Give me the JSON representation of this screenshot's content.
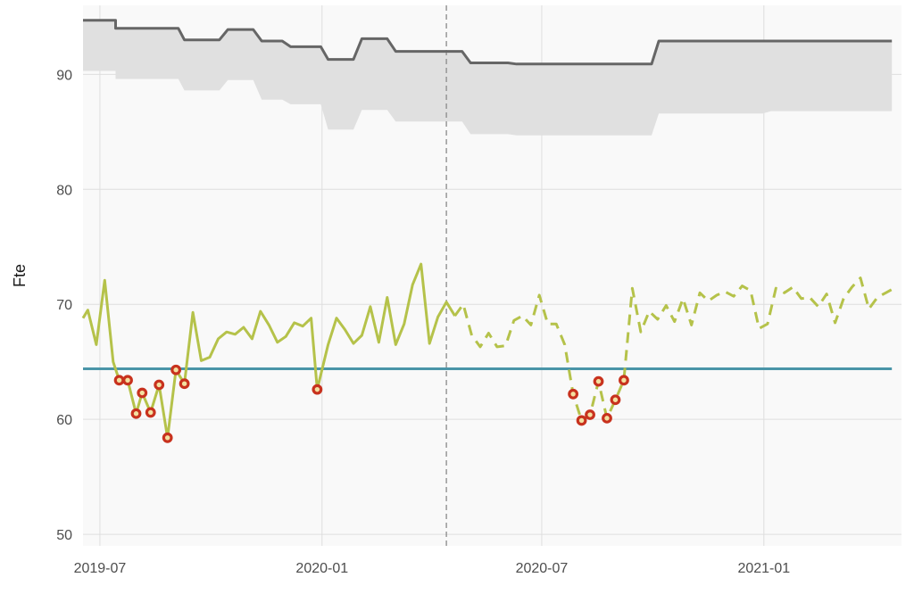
{
  "chart_data": {
    "type": "line",
    "title": "",
    "xlabel": "",
    "ylabel": "Fte",
    "ylim": [
      49,
      96
    ],
    "xlim": [
      "2019-06-17",
      "2021-04-25"
    ],
    "grid": true,
    "yticks": [
      50,
      60,
      70,
      80,
      90
    ],
    "xticks": [
      {
        "date": "2019-07-01",
        "label": "2019-07"
      },
      {
        "date": "2020-01-01",
        "label": "2020-01"
      },
      {
        "date": "2020-07-01",
        "label": "2020-07"
      },
      {
        "date": "2021-01-01",
        "label": "2021-01"
      }
    ],
    "forecast_start": "2020-04-13",
    "threshold": 64.4,
    "colors": {
      "panel": "#f9f9f9",
      "grid": "#dedede",
      "band": "#e0e0e0",
      "upper": "#666666",
      "actual": "#b5c24a",
      "threshold": "#4a95a8",
      "marker_ring": "#c8321e",
      "marker_fill": "#f3e0a0",
      "divider": "#8a8a8a"
    },
    "upper_steps": [
      {
        "x": "2019-06-17",
        "y": 94.7
      },
      {
        "x": "2019-07-14",
        "y": 94.7
      },
      {
        "x": "2019-07-14",
        "y": 94.0
      },
      {
        "x": "2019-08-29",
        "y": 94.0
      },
      {
        "x": "2019-08-29",
        "y": 94.0
      },
      {
        "x": "2019-09-04",
        "y": 94.0
      },
      {
        "x": "2019-09-09",
        "y": 93.0
      },
      {
        "x": "2019-10-08",
        "y": 93.0
      },
      {
        "x": "2019-10-15",
        "y": 93.9
      },
      {
        "x": "2019-11-05",
        "y": 93.9
      },
      {
        "x": "2019-11-12",
        "y": 92.9
      },
      {
        "x": "2019-11-29",
        "y": 92.9
      },
      {
        "x": "2019-12-06",
        "y": 92.4
      },
      {
        "x": "2019-12-31",
        "y": 92.4
      },
      {
        "x": "2020-01-06",
        "y": 91.3
      },
      {
        "x": "2020-01-27",
        "y": 91.3
      },
      {
        "x": "2020-02-03",
        "y": 93.1
      },
      {
        "x": "2020-02-24",
        "y": 93.1
      },
      {
        "x": "2020-03-02",
        "y": 92.0
      },
      {
        "x": "2020-04-26",
        "y": 92.0
      },
      {
        "x": "2020-05-03",
        "y": 91.0
      },
      {
        "x": "2020-06-03",
        "y": 91.0
      },
      {
        "x": "2020-06-10",
        "y": 90.9
      },
      {
        "x": "2020-09-30",
        "y": 90.9
      },
      {
        "x": "2020-10-06",
        "y": 92.9
      },
      {
        "x": "2021-04-17",
        "y": 92.9
      }
    ],
    "band_lower": [
      {
        "x": "2019-06-17",
        "y": 90.3
      },
      {
        "x": "2019-07-14",
        "y": 90.3
      },
      {
        "x": "2019-07-14",
        "y": 89.6
      },
      {
        "x": "2019-08-29",
        "y": 89.6
      },
      {
        "x": "2019-09-04",
        "y": 89.6
      },
      {
        "x": "2019-09-09",
        "y": 88.6
      },
      {
        "x": "2019-10-08",
        "y": 88.6
      },
      {
        "x": "2019-10-15",
        "y": 89.5
      },
      {
        "x": "2019-11-05",
        "y": 89.5
      },
      {
        "x": "2019-11-12",
        "y": 87.8
      },
      {
        "x": "2019-11-29",
        "y": 87.8
      },
      {
        "x": "2019-12-06",
        "y": 87.4
      },
      {
        "x": "2019-12-31",
        "y": 87.4
      },
      {
        "x": "2020-01-06",
        "y": 85.2
      },
      {
        "x": "2020-01-27",
        "y": 85.2
      },
      {
        "x": "2020-02-03",
        "y": 86.9
      },
      {
        "x": "2020-02-24",
        "y": 86.9
      },
      {
        "x": "2020-03-02",
        "y": 85.9
      },
      {
        "x": "2020-04-26",
        "y": 85.9
      },
      {
        "x": "2020-05-03",
        "y": 84.8
      },
      {
        "x": "2020-06-03",
        "y": 84.8
      },
      {
        "x": "2020-06-10",
        "y": 84.7
      },
      {
        "x": "2020-09-30",
        "y": 84.7
      },
      {
        "x": "2020-10-06",
        "y": 86.6
      },
      {
        "x": "2020-12-31",
        "y": 86.6
      },
      {
        "x": "2021-01-07",
        "y": 86.8
      },
      {
        "x": "2021-04-17",
        "y": 86.8
      }
    ],
    "series": [
      {
        "style": "solid",
        "points": [
          {
            "x": "2019-06-17",
            "y": 68.8
          },
          {
            "x": "2019-06-21",
            "y": 69.5
          },
          {
            "x": "2019-06-28",
            "y": 66.5
          },
          {
            "x": "2019-07-05",
            "y": 72.1
          },
          {
            "x": "2019-07-12",
            "y": 65.0
          },
          {
            "x": "2019-07-17",
            "y": 63.4
          },
          {
            "x": "2019-07-24",
            "y": 63.4
          },
          {
            "x": "2019-07-31",
            "y": 60.5
          },
          {
            "x": "2019-08-05",
            "y": 62.3
          },
          {
            "x": "2019-08-12",
            "y": 60.6
          },
          {
            "x": "2019-08-19",
            "y": 63.0
          },
          {
            "x": "2019-08-26",
            "y": 58.4
          },
          {
            "x": "2019-09-02",
            "y": 64.3
          },
          {
            "x": "2019-09-09",
            "y": 63.1
          },
          {
            "x": "2019-09-16",
            "y": 69.3
          },
          {
            "x": "2019-09-23",
            "y": 65.1
          },
          {
            "x": "2019-09-30",
            "y": 65.4
          },
          {
            "x": "2019-10-07",
            "y": 67.0
          },
          {
            "x": "2019-10-14",
            "y": 67.6
          },
          {
            "x": "2019-10-21",
            "y": 67.4
          },
          {
            "x": "2019-10-28",
            "y": 68.0
          },
          {
            "x": "2019-11-04",
            "y": 67.0
          },
          {
            "x": "2019-11-11",
            "y": 69.4
          },
          {
            "x": "2019-11-18",
            "y": 68.2
          },
          {
            "x": "2019-11-25",
            "y": 66.7
          },
          {
            "x": "2019-12-02",
            "y": 67.2
          },
          {
            "x": "2019-12-09",
            "y": 68.4
          },
          {
            "x": "2019-12-16",
            "y": 68.1
          },
          {
            "x": "2019-12-23",
            "y": 68.8
          },
          {
            "x": "2019-12-28",
            "y": 62.6
          },
          {
            "x": "2020-01-06",
            "y": 66.5
          },
          {
            "x": "2020-01-13",
            "y": 68.8
          },
          {
            "x": "2020-01-20",
            "y": 67.8
          },
          {
            "x": "2020-01-27",
            "y": 66.6
          },
          {
            "x": "2020-02-03",
            "y": 67.3
          },
          {
            "x": "2020-02-10",
            "y": 69.8
          },
          {
            "x": "2020-02-17",
            "y": 66.7
          },
          {
            "x": "2020-02-24",
            "y": 70.6
          },
          {
            "x": "2020-03-02",
            "y": 66.5
          },
          {
            "x": "2020-03-09",
            "y": 68.3
          },
          {
            "x": "2020-03-16",
            "y": 71.7
          },
          {
            "x": "2020-03-23",
            "y": 73.5
          },
          {
            "x": "2020-03-30",
            "y": 66.6
          },
          {
            "x": "2020-04-06",
            "y": 68.9
          },
          {
            "x": "2020-04-13",
            "y": 70.2
          },
          {
            "x": "2020-04-20",
            "y": 69.0
          }
        ]
      },
      {
        "style": "dashed",
        "points": [
          {
            "x": "2020-04-27",
            "y": 70.0
          },
          {
            "x": "2020-05-04",
            "y": 67.3
          },
          {
            "x": "2020-05-11",
            "y": 66.3
          },
          {
            "x": "2020-05-18",
            "y": 67.5
          },
          {
            "x": "2020-05-25",
            "y": 66.3
          },
          {
            "x": "2020-06-01",
            "y": 66.4
          },
          {
            "x": "2020-06-08",
            "y": 68.6
          },
          {
            "x": "2020-06-15",
            "y": 69.0
          },
          {
            "x": "2020-06-22",
            "y": 68.2
          },
          {
            "x": "2020-06-29",
            "y": 70.8
          },
          {
            "x": "2020-07-06",
            "y": 68.3
          },
          {
            "x": "2020-07-13",
            "y": 68.3
          },
          {
            "x": "2020-07-20",
            "y": 66.5
          },
          {
            "x": "2020-07-27",
            "y": 62.2
          },
          {
            "x": "2020-08-03",
            "y": 59.9
          },
          {
            "x": "2020-08-10",
            "y": 60.4
          },
          {
            "x": "2020-08-17",
            "y": 63.3
          },
          {
            "x": "2020-08-24",
            "y": 60.1
          },
          {
            "x": "2020-08-31",
            "y": 61.7
          },
          {
            "x": "2020-09-07",
            "y": 63.4
          },
          {
            "x": "2020-09-14",
            "y": 71.4
          },
          {
            "x": "2020-09-21",
            "y": 67.6
          },
          {
            "x": "2020-09-28",
            "y": 69.4
          },
          {
            "x": "2020-10-05",
            "y": 68.7
          },
          {
            "x": "2020-10-12",
            "y": 69.9
          },
          {
            "x": "2020-10-19",
            "y": 68.5
          },
          {
            "x": "2020-10-26",
            "y": 70.5
          },
          {
            "x": "2020-11-02",
            "y": 68.2
          },
          {
            "x": "2020-11-09",
            "y": 71.0
          },
          {
            "x": "2020-11-16",
            "y": 70.3
          },
          {
            "x": "2020-11-23",
            "y": 70.8
          },
          {
            "x": "2020-11-30",
            "y": 71.1
          },
          {
            "x": "2020-12-07",
            "y": 70.7
          },
          {
            "x": "2020-12-14",
            "y": 71.6
          },
          {
            "x": "2020-12-21",
            "y": 71.2
          },
          {
            "x": "2020-12-28",
            "y": 67.9
          },
          {
            "x": "2021-01-04",
            "y": 68.3
          },
          {
            "x": "2021-01-11",
            "y": 71.4
          },
          {
            "x": "2021-01-18",
            "y": 71.0
          },
          {
            "x": "2021-01-25",
            "y": 71.5
          },
          {
            "x": "2021-02-01",
            "y": 70.5
          },
          {
            "x": "2021-02-08",
            "y": 70.6
          },
          {
            "x": "2021-02-15",
            "y": 69.8
          },
          {
            "x": "2021-02-22",
            "y": 70.9
          },
          {
            "x": "2021-03-01",
            "y": 68.4
          },
          {
            "x": "2021-03-08",
            "y": 70.5
          },
          {
            "x": "2021-03-15",
            "y": 71.5
          },
          {
            "x": "2021-03-22",
            "y": 72.3
          },
          {
            "x": "2021-03-29",
            "y": 69.6
          },
          {
            "x": "2021-04-05",
            "y": 70.6
          },
          {
            "x": "2021-04-12",
            "y": 71.0
          },
          {
            "x": "2021-04-17",
            "y": 71.3
          }
        ]
      }
    ],
    "flagged_points": [
      {
        "x": "2019-07-17",
        "y": 63.4
      },
      {
        "x": "2019-07-24",
        "y": 63.4
      },
      {
        "x": "2019-07-31",
        "y": 60.5
      },
      {
        "x": "2019-08-05",
        "y": 62.3
      },
      {
        "x": "2019-08-12",
        "y": 60.6
      },
      {
        "x": "2019-08-19",
        "y": 63.0
      },
      {
        "x": "2019-08-26",
        "y": 58.4
      },
      {
        "x": "2019-09-02",
        "y": 64.3
      },
      {
        "x": "2019-09-09",
        "y": 63.1
      },
      {
        "x": "2019-12-28",
        "y": 62.6
      },
      {
        "x": "2020-07-27",
        "y": 62.2
      },
      {
        "x": "2020-08-03",
        "y": 59.9
      },
      {
        "x": "2020-08-10",
        "y": 60.4
      },
      {
        "x": "2020-08-17",
        "y": 63.3
      },
      {
        "x": "2020-08-24",
        "y": 60.1
      },
      {
        "x": "2020-08-31",
        "y": 61.7
      },
      {
        "x": "2020-09-07",
        "y": 63.4
      }
    ]
  }
}
